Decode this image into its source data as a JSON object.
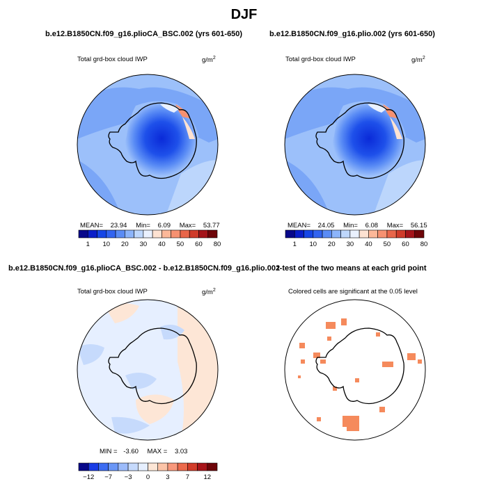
{
  "chart_data": [
    {
      "type": "heatmap",
      "panel": "top-left",
      "title": "b.e12.B1850CN.f09_g16.plioCA_BSC.002 (yrs 601-650)",
      "left_string": "Total grd-box cloud IWP",
      "right_string": "g/m",
      "units_superscript": "2",
      "projection": "south-polar-stereographic",
      "stats": {
        "mean_label": "MEAN=",
        "mean": "23.94",
        "min_label": "Min=",
        "min": "6.09",
        "max_label": "Max=",
        "max": "53.77"
      },
      "colorbar_labels": [
        "1",
        "10",
        "20",
        "30",
        "40",
        "50",
        "60",
        "80"
      ]
    },
    {
      "type": "heatmap",
      "panel": "top-right",
      "title": "b.e12.B1850CN.f09_g16.plio.002 (yrs 601-650)",
      "left_string": "Total grd-box cloud IWP",
      "right_string": "g/m",
      "units_superscript": "2",
      "projection": "south-polar-stereographic",
      "stats": {
        "mean_label": "MEAN=",
        "mean": "24.05",
        "min_label": "Min=",
        "min": "6.08",
        "max_label": "Max=",
        "max": "56.15"
      },
      "colorbar_labels": [
        "1",
        "10",
        "20",
        "30",
        "40",
        "50",
        "60",
        "80"
      ]
    },
    {
      "type": "heatmap",
      "panel": "bottom-left",
      "title": "b.e12.B1850CN.f09_g16.plioCA_BSC.002 - b.e12.B1850CN.f09_g16.plio.002",
      "left_string": "Total grd-box cloud IWP",
      "right_string": "g/m",
      "units_superscript": "2",
      "projection": "south-polar-stereographic",
      "stats": {
        "min_label": "MIN =",
        "min": "-3.60",
        "max_label": "MAX =",
        "max": "3.03"
      },
      "colorbar_labels": [
        "−12",
        "−7",
        "−3",
        "0",
        "3",
        "7",
        "12"
      ]
    },
    {
      "type": "heatmap",
      "panel": "bottom-right",
      "title": "t-test of the two means at each grid point",
      "left_string": "Colored cells are significant at the 0.05 level",
      "projection": "south-polar-stereographic"
    }
  ],
  "figure_title": "DJF",
  "colors": {
    "abs_scale": [
      "#08088a",
      "#0a1ec8",
      "#1646e6",
      "#3264f0",
      "#5a8cf5",
      "#8cb4fa",
      "#bed7fc",
      "#eaf1fe",
      "#fde2d2",
      "#fcb899",
      "#f69171",
      "#e8664a",
      "#cf3b2a",
      "#a4141a",
      "#6e0509"
    ],
    "diff_scale": [
      "#08088a",
      "#1a3ce6",
      "#3c6cf2",
      "#6a96f6",
      "#9cbbfa",
      "#c6dafc",
      "#e6efff",
      "#fde6d6",
      "#fcc4a8",
      "#f8987c",
      "#ec6a4c",
      "#d23c2a",
      "#a8141a",
      "#6e0509"
    ],
    "sig_cell": "#f58a5c"
  }
}
